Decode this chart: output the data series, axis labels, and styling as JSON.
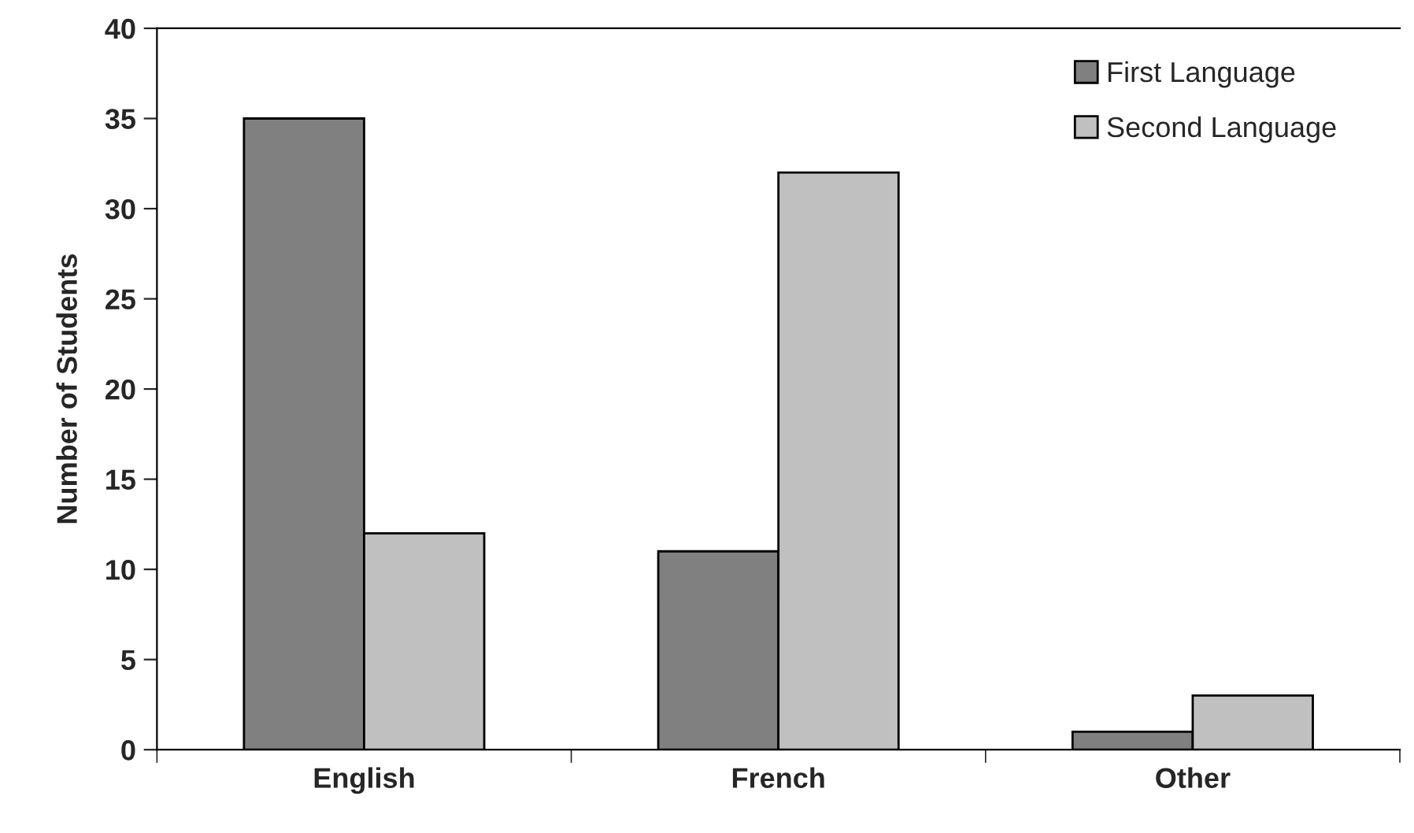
{
  "chart_data": {
    "type": "bar",
    "ylabel": "Number of Students",
    "categories": [
      "English",
      "French",
      "Other"
    ],
    "series": [
      {
        "name": "First Language",
        "color": "#808080",
        "values": [
          35,
          11,
          1
        ]
      },
      {
        "name": "Second Language",
        "color": "#c0c0c0",
        "values": [
          12,
          32,
          3
        ]
      }
    ],
    "ylim": [
      0,
      40
    ],
    "yticks": [
      0,
      5,
      10,
      15,
      20,
      25,
      30,
      35,
      40
    ],
    "grid": false,
    "legend": "top right"
  }
}
